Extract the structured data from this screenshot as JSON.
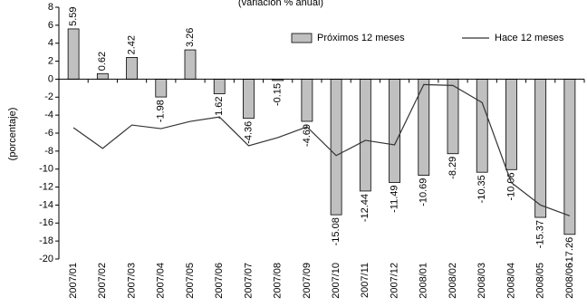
{
  "chart_data": {
    "type": "bar-line",
    "subtitle": "(variación % anual)",
    "y_label": "(porcentaje)",
    "categories": [
      "2007/01",
      "2007/02",
      "2007/03",
      "2007/04",
      "2007/05",
      "2007/06",
      "2007/07",
      "2007/08",
      "2007/09",
      "2007/10",
      "2007/11",
      "2007/12",
      "2008/01",
      "2008/02",
      "2008/03",
      "2008/04",
      "2008/05",
      "2008/06"
    ],
    "series": [
      {
        "name": "Próximos 12 meses",
        "type": "bar",
        "color": "#c0c0c0",
        "values": [
          5.59,
          0.62,
          2.42,
          -1.98,
          3.26,
          -1.62,
          -4.36,
          -0.15,
          -4.69,
          -15.08,
          -12.44,
          -11.49,
          -10.69,
          -8.29,
          -10.35,
          -10.06,
          -15.37,
          -17.26
        ]
      },
      {
        "name": "Hace 12 meses",
        "type": "line",
        "color": "#333333",
        "values": [
          -5.4,
          -7.7,
          -5.1,
          -5.5,
          -4.7,
          -4.2,
          -7.4,
          -6.5,
          -5.3,
          -8.5,
          -6.8,
          -7.3,
          -0.6,
          -0.7,
          -2.6,
          -11.5,
          -14.0,
          -15.2
        ]
      }
    ],
    "ylim": [
      -20,
      8
    ],
    "yticks": [
      -20,
      -18,
      -16,
      -14,
      -12,
      -10,
      -8,
      -6,
      -4,
      -2,
      0,
      2,
      4,
      6,
      8
    ],
    "legend": "top-right",
    "grid": false
  }
}
